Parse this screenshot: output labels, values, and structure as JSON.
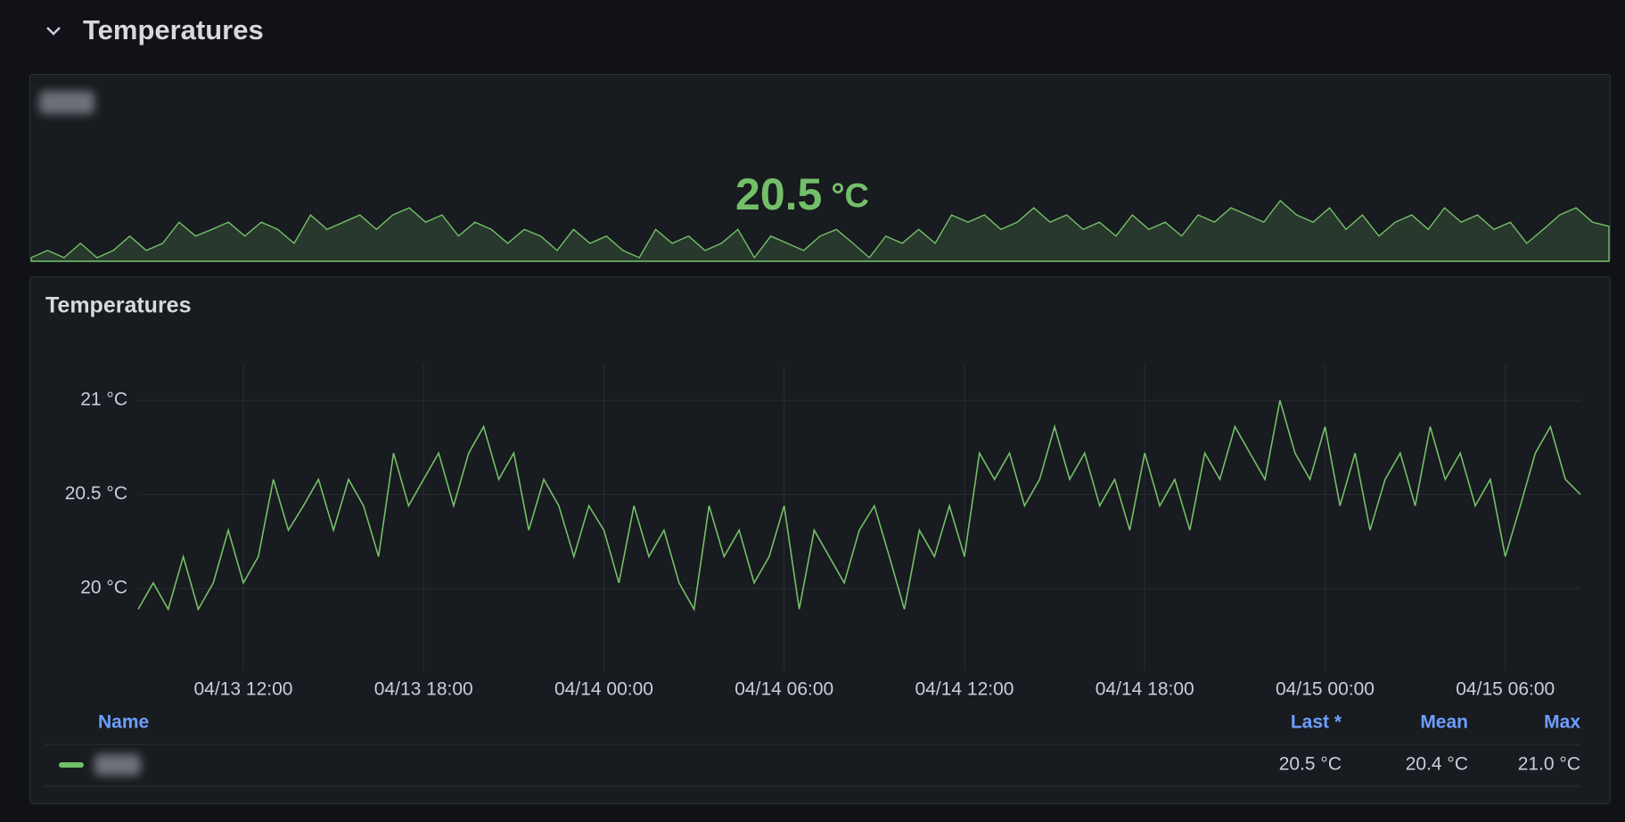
{
  "row_title": "Temperatures",
  "stat_panel": {
    "value": 20.5,
    "unit": "°C"
  },
  "chart_data": {
    "type": "line",
    "title": "Temperatures",
    "x": [
      "04/13 08:30",
      "04/13 09:00",
      "04/13 09:30",
      "04/13 10:00",
      "04/13 10:30",
      "04/13 11:00",
      "04/13 11:30",
      "04/13 12:00",
      "04/13 12:30",
      "04/13 13:00",
      "04/13 13:30",
      "04/13 14:00",
      "04/13 14:30",
      "04/13 15:00",
      "04/13 15:30",
      "04/13 16:00",
      "04/13 16:30",
      "04/13 17:00",
      "04/13 17:30",
      "04/13 18:00",
      "04/13 18:30",
      "04/13 19:00",
      "04/13 19:30",
      "04/13 20:00",
      "04/13 20:30",
      "04/13 21:00",
      "04/13 21:30",
      "04/13 22:00",
      "04/13 22:30",
      "04/13 23:00",
      "04/13 23:30",
      "04/14 00:00",
      "04/14 00:30",
      "04/14 01:00",
      "04/14 01:30",
      "04/14 02:00",
      "04/14 02:30",
      "04/14 03:00",
      "04/14 03:30",
      "04/14 04:00",
      "04/14 04:30",
      "04/14 05:00",
      "04/14 05:30",
      "04/14 06:00",
      "04/14 06:30",
      "04/14 07:00",
      "04/14 07:30",
      "04/14 08:00",
      "04/14 08:30",
      "04/14 09:00",
      "04/14 09:30",
      "04/14 10:00",
      "04/14 10:30",
      "04/14 11:00",
      "04/14 11:30",
      "04/14 12:00",
      "04/14 12:30",
      "04/14 13:00",
      "04/14 13:30",
      "04/14 14:00",
      "04/14 14:30",
      "04/14 15:00",
      "04/14 15:30",
      "04/14 16:00",
      "04/14 16:30",
      "04/14 17:00",
      "04/14 17:30",
      "04/14 18:00",
      "04/14 18:30",
      "04/14 19:00",
      "04/14 19:30",
      "04/14 20:00",
      "04/14 20:30",
      "04/14 21:00",
      "04/14 21:30",
      "04/14 22:00",
      "04/14 22:30",
      "04/14 23:00",
      "04/14 23:30",
      "04/15 00:00",
      "04/15 00:30",
      "04/15 01:00",
      "04/15 01:30",
      "04/15 02:00",
      "04/15 02:30",
      "04/15 03:00",
      "04/15 03:30",
      "04/15 04:00",
      "04/15 04:30",
      "04/15 05:00",
      "04/15 05:30",
      "04/15 06:00",
      "04/15 06:30",
      "04/15 07:00",
      "04/15 07:30",
      "04/15 08:00",
      "04/15 08:30"
    ],
    "series": [
      {
        "color": "#73bf69",
        "values": [
          19.89,
          20.03,
          19.89,
          20.17,
          19.89,
          20.03,
          20.31,
          20.03,
          20.17,
          20.58,
          20.31,
          20.44,
          20.58,
          20.31,
          20.58,
          20.44,
          20.17,
          20.72,
          20.44,
          20.58,
          20.72,
          20.44,
          20.72,
          20.86,
          20.58,
          20.72,
          20.31,
          20.58,
          20.44,
          20.17,
          20.44,
          20.31,
          20.03,
          20.44,
          20.17,
          20.31,
          20.03,
          19.89,
          20.44,
          20.17,
          20.31,
          20.03,
          20.17,
          20.44,
          19.89,
          20.31,
          20.17,
          20.03,
          20.31,
          20.44,
          20.17,
          19.89,
          20.31,
          20.17,
          20.44,
          20.17,
          20.72,
          20.58,
          20.72,
          20.44,
          20.58,
          20.86,
          20.58,
          20.72,
          20.44,
          20.58,
          20.31,
          20.72,
          20.44,
          20.58,
          20.31,
          20.72,
          20.58,
          20.86,
          20.72,
          20.58,
          21.0,
          20.72,
          20.58,
          20.86,
          20.44,
          20.72,
          20.31,
          20.58,
          20.72,
          20.44,
          20.86,
          20.58,
          20.72,
          20.44,
          20.58,
          20.17,
          20.44,
          20.72,
          20.86,
          20.58,
          20.5
        ]
      }
    ],
    "xlim": [
      "04/13 08:30",
      "04/15 08:30"
    ],
    "xticks": [
      "04/13 12:00",
      "04/13 18:00",
      "04/14 00:00",
      "04/14 06:00",
      "04/14 12:00",
      "04/14 18:00",
      "04/15 00:00",
      "04/15 06:00"
    ],
    "ylim": [
      19.56,
      21.19
    ],
    "yticks": [
      {
        "value": 20,
        "label": "20 °C"
      },
      {
        "value": 20.5,
        "label": "20.5 °C"
      },
      {
        "value": 21,
        "label": "21 °C"
      }
    ],
    "grid": true
  },
  "legend": {
    "headers": [
      "Name",
      "Last *",
      "Mean",
      "Max"
    ],
    "values": [
      "20.5 °C",
      "20.4 °C",
      "21.0 °C"
    ]
  }
}
